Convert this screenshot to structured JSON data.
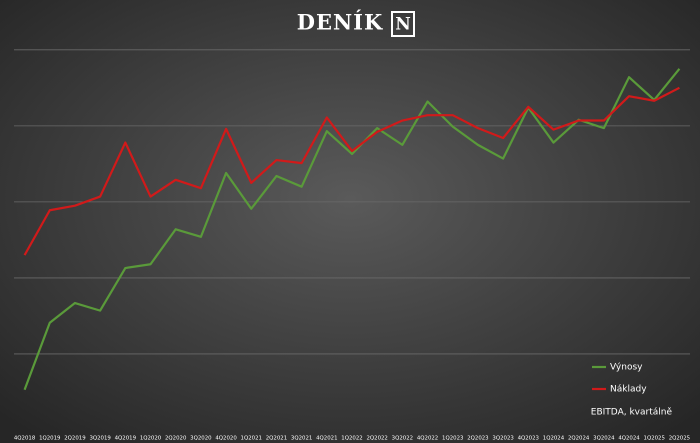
{
  "chart_data": {
    "type": "line",
    "title": "DENÍK",
    "brand_mark": "N",
    "annotation": "EBITDA, kvartálně",
    "categories": [
      "4Q2018",
      "1Q2019",
      "2Q2019",
      "3Q2019",
      "4Q2019",
      "1Q2020",
      "2Q2020",
      "3Q2020",
      "4Q2020",
      "1Q2021",
      "2Q2021",
      "3Q2021",
      "4Q2021",
      "1Q2022",
      "2Q2022",
      "3Q2022",
      "4Q2022",
      "1Q2023",
      "2Q2023",
      "3Q2023",
      "4Q2023",
      "1Q2024",
      "2Q2024",
      "3Q2024",
      "4Q2024",
      "1Q2025",
      "2Q2025"
    ],
    "series": [
      {
        "name": "Výnosy",
        "color": "#5a9a3a",
        "values": [
          0.53,
          1.41,
          1.67,
          1.57,
          2.13,
          2.18,
          2.64,
          2.54,
          3.38,
          2.91,
          3.34,
          3.2,
          3.93,
          3.63,
          3.97,
          3.75,
          4.32,
          3.99,
          3.75,
          3.57,
          4.24,
          3.78,
          4.08,
          3.97,
          4.64,
          4.34,
          4.75
        ]
      },
      {
        "name": "Náklady",
        "color": "#d11a1a",
        "values": [
          2.3,
          2.89,
          2.95,
          3.07,
          3.78,
          3.07,
          3.29,
          3.18,
          3.96,
          3.25,
          3.55,
          3.51,
          4.11,
          3.67,
          3.92,
          4.07,
          4.14,
          4.14,
          3.97,
          3.84,
          4.25,
          3.95,
          4.07,
          4.07,
          4.39,
          4.33,
          4.5
        ]
      }
    ],
    "ylim": [
      0,
      5.3
    ],
    "yticks": [
      1,
      2,
      3,
      4,
      5
    ],
    "grid": true,
    "legend": "lower-right"
  }
}
